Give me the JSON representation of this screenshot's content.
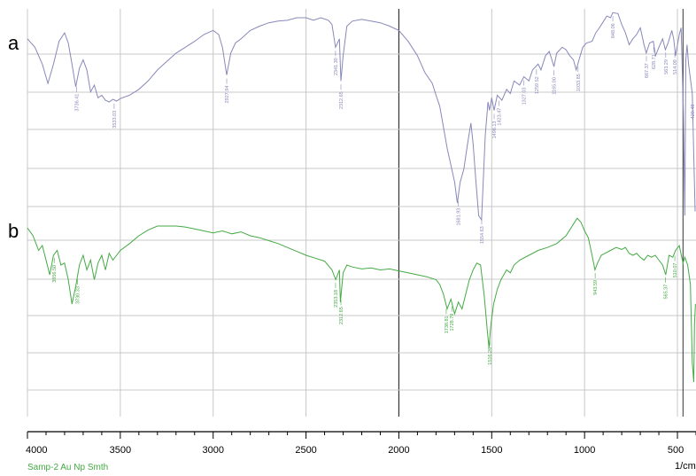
{
  "chart_data": {
    "type": "line",
    "xlim": [
      4000,
      400
    ],
    "x_ticks": [
      4000,
      3500,
      3000,
      2500,
      2000,
      1500,
      1000,
      500
    ],
    "x_unit_label": "1/cm",
    "caption": "Samp-2 Au Np Smth",
    "grid": true,
    "colors": {
      "a": "#8888bb",
      "b": "#44aa44",
      "grid": "#c8c8c8",
      "centerline": "#333333"
    },
    "series": [
      {
        "panel": "a",
        "points": [
          [
            4000,
            0.25
          ],
          [
            3960,
            0.35
          ],
          [
            3920,
            0.55
          ],
          [
            3890,
            0.78
          ],
          [
            3860,
            0.55
          ],
          [
            3830,
            0.28
          ],
          [
            3800,
            0.18
          ],
          [
            3780,
            0.3
          ],
          [
            3760,
            0.55
          ],
          [
            3740,
            0.82
          ],
          [
            3720,
            0.6
          ],
          [
            3700,
            0.5
          ],
          [
            3680,
            0.62
          ],
          [
            3660,
            0.88
          ],
          [
            3640,
            0.8
          ],
          [
            3620,
            0.95
          ],
          [
            3600,
            0.92
          ],
          [
            3580,
            0.98
          ],
          [
            3560,
            1.0
          ],
          [
            3540,
            0.97
          ],
          [
            3520,
            0.99
          ],
          [
            3500,
            0.96
          ],
          [
            3450,
            0.92
          ],
          [
            3400,
            0.85
          ],
          [
            3350,
            0.75
          ],
          [
            3300,
            0.62
          ],
          [
            3250,
            0.52
          ],
          [
            3200,
            0.42
          ],
          [
            3150,
            0.35
          ],
          [
            3100,
            0.28
          ],
          [
            3050,
            0.2
          ],
          [
            3000,
            0.15
          ],
          [
            2970,
            0.2
          ],
          [
            2950,
            0.35
          ],
          [
            2927,
            0.68
          ],
          [
            2905,
            0.42
          ],
          [
            2880,
            0.3
          ],
          [
            2850,
            0.25
          ],
          [
            2800,
            0.15
          ],
          [
            2750,
            0.1
          ],
          [
            2700,
            0.06
          ],
          [
            2650,
            0.04
          ],
          [
            2600,
            0.03
          ],
          [
            2550,
            0.0
          ],
          [
            2500,
            0.0
          ],
          [
            2460,
            0.03
          ],
          [
            2420,
            0.0
          ],
          [
            2380,
            0.03
          ],
          [
            2360,
            0.08
          ],
          [
            2341,
            0.35
          ],
          [
            2320,
            0.25
          ],
          [
            2312,
            0.75
          ],
          [
            2300,
            0.45
          ],
          [
            2280,
            0.1
          ],
          [
            2250,
            0.04
          ],
          [
            2200,
            0.02
          ],
          [
            2150,
            0.04
          ],
          [
            2100,
            0.06
          ],
          [
            2050,
            0.1
          ],
          [
            2000,
            0.15
          ],
          [
            1950,
            0.28
          ],
          [
            1900,
            0.45
          ],
          [
            1860,
            0.65
          ],
          [
            1820,
            0.78
          ],
          [
            1800,
            0.92
          ],
          [
            1780,
            1.05
          ],
          [
            1760,
            1.3
          ],
          [
            1740,
            1.55
          ],
          [
            1720,
            1.75
          ],
          [
            1700,
            1.95
          ],
          [
            1685,
            2.2
          ],
          [
            1670,
            1.95
          ],
          [
            1650,
            1.8
          ],
          [
            1630,
            1.5
          ],
          [
            1612,
            1.25
          ],
          [
            1600,
            1.5
          ],
          [
            1585,
            1.95
          ],
          [
            1570,
            2.35
          ],
          [
            1555,
            2.4
          ],
          [
            1545,
            1.9
          ],
          [
            1535,
            1.4
          ],
          [
            1520,
            1.0
          ],
          [
            1512,
            1.1
          ],
          [
            1500,
            0.95
          ],
          [
            1487,
            1.1
          ],
          [
            1470,
            0.92
          ],
          [
            1445,
            0.98
          ],
          [
            1420,
            0.85
          ],
          [
            1400,
            0.9
          ],
          [
            1380,
            0.75
          ],
          [
            1350,
            0.8
          ],
          [
            1327,
            0.7
          ],
          [
            1300,
            0.75
          ],
          [
            1280,
            0.62
          ],
          [
            1250,
            0.55
          ],
          [
            1235,
            0.62
          ],
          [
            1210,
            0.45
          ],
          [
            1190,
            0.4
          ],
          [
            1165,
            0.58
          ],
          [
            1150,
            0.42
          ],
          [
            1120,
            0.35
          ],
          [
            1100,
            0.38
          ],
          [
            1080,
            0.45
          ],
          [
            1060,
            0.5
          ],
          [
            1045,
            0.62
          ],
          [
            1030,
            0.5
          ],
          [
            1010,
            0.35
          ],
          [
            990,
            0.3
          ],
          [
            960,
            0.28
          ],
          [
            940,
            0.18
          ],
          [
            920,
            0.12
          ],
          [
            900,
            0.05
          ],
          [
            880,
            -0.02
          ],
          [
            860,
            0.0
          ],
          [
            848,
            -0.06
          ],
          [
            820,
            -0.05
          ],
          [
            800,
            0.08
          ],
          [
            780,
            0.18
          ],
          [
            760,
            0.32
          ],
          [
            740,
            0.25
          ],
          [
            720,
            0.2
          ],
          [
            700,
            0.12
          ],
          [
            680,
            0.32
          ],
          [
            668,
            0.42
          ],
          [
            650,
            0.3
          ],
          [
            630,
            0.28
          ],
          [
            618,
            0.45
          ],
          [
            600,
            0.35
          ],
          [
            580,
            0.25
          ],
          [
            565,
            0.38
          ],
          [
            550,
            0.3
          ],
          [
            530,
            0.15
          ],
          [
            520,
            0.25
          ],
          [
            510,
            0.45
          ],
          [
            490,
            0.2
          ],
          [
            480,
            0.12
          ],
          [
            468,
            1.1
          ],
          [
            460,
            2.35
          ],
          [
            455,
            0.5
          ],
          [
            448,
            0.32
          ],
          [
            440,
            0.55
          ],
          [
            420,
            0.9
          ],
          [
            405,
            2.3
          ]
        ],
        "peak_labels": [
          {
            "x": 3736,
            "text": "3736.41"
          },
          {
            "x": 3533,
            "text": "3533.03"
          },
          {
            "x": 2927,
            "text": "2927.94"
          },
          {
            "x": 2341,
            "text": "2341.30"
          },
          {
            "x": 2312,
            "text": "2312.65"
          },
          {
            "x": 1681,
            "text": "1681.93"
          },
          {
            "x": 1554,
            "text": "1554.63"
          },
          {
            "x": 1487,
            "text": "1498.13"
          },
          {
            "x": 1460,
            "text": "1423.47"
          },
          {
            "x": 1327,
            "text": "1327.03"
          },
          {
            "x": 1259,
            "text": "1259.52"
          },
          {
            "x": 1165,
            "text": "1165.00"
          },
          {
            "x": 1035,
            "text": "1033.85"
          },
          {
            "x": 848,
            "text": "848.06"
          },
          {
            "x": 667,
            "text": "667.37"
          },
          {
            "x": 628,
            "text": "628.71"
          },
          {
            "x": 563,
            "text": "563.29"
          },
          {
            "x": 514,
            "text": "514.09"
          },
          {
            "x": 420,
            "text": "420.48"
          }
        ]
      },
      {
        "panel": "b",
        "points": [
          [
            4000,
            0.02
          ],
          [
            3970,
            0.1
          ],
          [
            3940,
            0.25
          ],
          [
            3920,
            0.2
          ],
          [
            3900,
            0.35
          ],
          [
            3880,
            0.5
          ],
          [
            3860,
            0.3
          ],
          [
            3840,
            0.25
          ],
          [
            3820,
            0.4
          ],
          [
            3800,
            0.38
          ],
          [
            3780,
            0.55
          ],
          [
            3760,
            0.8
          ],
          [
            3740,
            0.62
          ],
          [
            3720,
            0.4
          ],
          [
            3700,
            0.3
          ],
          [
            3680,
            0.45
          ],
          [
            3660,
            0.35
          ],
          [
            3640,
            0.55
          ],
          [
            3620,
            0.38
          ],
          [
            3600,
            0.3
          ],
          [
            3580,
            0.45
          ],
          [
            3560,
            0.28
          ],
          [
            3540,
            0.35
          ],
          [
            3500,
            0.25
          ],
          [
            3450,
            0.18
          ],
          [
            3400,
            0.1
          ],
          [
            3350,
            0.04
          ],
          [
            3300,
            0.0
          ],
          [
            3250,
            0.0
          ],
          [
            3200,
            0.0
          ],
          [
            3150,
            0.01
          ],
          [
            3100,
            0.03
          ],
          [
            3050,
            0.05
          ],
          [
            3000,
            0.07
          ],
          [
            2950,
            0.05
          ],
          [
            2900,
            0.08
          ],
          [
            2850,
            0.06
          ],
          [
            2800,
            0.1
          ],
          [
            2750,
            0.12
          ],
          [
            2700,
            0.15
          ],
          [
            2650,
            0.18
          ],
          [
            2600,
            0.22
          ],
          [
            2550,
            0.26
          ],
          [
            2500,
            0.3
          ],
          [
            2450,
            0.33
          ],
          [
            2400,
            0.36
          ],
          [
            2360,
            0.45
          ],
          [
            2340,
            0.55
          ],
          [
            2320,
            0.45
          ],
          [
            2315,
            0.78
          ],
          [
            2300,
            0.48
          ],
          [
            2280,
            0.4
          ],
          [
            2250,
            0.42
          ],
          [
            2200,
            0.44
          ],
          [
            2150,
            0.43
          ],
          [
            2100,
            0.45
          ],
          [
            2050,
            0.44
          ],
          [
            2000,
            0.46
          ],
          [
            1950,
            0.48
          ],
          [
            1900,
            0.5
          ],
          [
            1850,
            0.52
          ],
          [
            1800,
            0.55
          ],
          [
            1780,
            0.6
          ],
          [
            1760,
            0.7
          ],
          [
            1740,
            0.85
          ],
          [
            1720,
            0.75
          ],
          [
            1700,
            0.9
          ],
          [
            1680,
            0.78
          ],
          [
            1660,
            0.85
          ],
          [
            1640,
            0.7
          ],
          [
            1620,
            0.55
          ],
          [
            1600,
            0.45
          ],
          [
            1580,
            0.38
          ],
          [
            1560,
            0.4
          ],
          [
            1540,
            0.72
          ],
          [
            1525,
            1.05
          ],
          [
            1515,
            1.25
          ],
          [
            1505,
            1.02
          ],
          [
            1490,
            0.8
          ],
          [
            1470,
            0.65
          ],
          [
            1450,
            0.55
          ],
          [
            1420,
            0.45
          ],
          [
            1400,
            0.48
          ],
          [
            1380,
            0.4
          ],
          [
            1350,
            0.35
          ],
          [
            1300,
            0.3
          ],
          [
            1250,
            0.25
          ],
          [
            1200,
            0.22
          ],
          [
            1150,
            0.18
          ],
          [
            1100,
            0.1
          ],
          [
            1060,
            -0.02
          ],
          [
            1040,
            -0.08
          ],
          [
            1020,
            -0.04
          ],
          [
            1000,
            0.05
          ],
          [
            980,
            0.12
          ],
          [
            960,
            0.3
          ],
          [
            944,
            0.45
          ],
          [
            930,
            0.38
          ],
          [
            910,
            0.3
          ],
          [
            890,
            0.28
          ],
          [
            860,
            0.25
          ],
          [
            830,
            0.22
          ],
          [
            800,
            0.24
          ],
          [
            780,
            0.22
          ],
          [
            760,
            0.28
          ],
          [
            740,
            0.3
          ],
          [
            720,
            0.28
          ],
          [
            700,
            0.32
          ],
          [
            680,
            0.35
          ],
          [
            660,
            0.3
          ],
          [
            640,
            0.32
          ],
          [
            620,
            0.3
          ],
          [
            600,
            0.35
          ],
          [
            580,
            0.4
          ],
          [
            563,
            0.5
          ],
          [
            545,
            0.3
          ],
          [
            525,
            0.32
          ],
          [
            510,
            0.25
          ],
          [
            490,
            0.2
          ],
          [
            470,
            0.38
          ],
          [
            460,
            0.32
          ],
          [
            445,
            0.4
          ],
          [
            430,
            0.6
          ],
          [
            420,
            1.4
          ],
          [
            412,
            1.6
          ],
          [
            408,
            1.0
          ],
          [
            403,
            0.8
          ]
        ],
        "peak_labels": [
          {
            "x": 3856,
            "text": "3856.50"
          },
          {
            "x": 3730,
            "text": "3730.33"
          },
          {
            "x": 2341,
            "text": "2353.18"
          },
          {
            "x": 2312,
            "text": "2312.65"
          },
          {
            "x": 1745,
            "text": "1738.81"
          },
          {
            "x": 1715,
            "text": "1728.79"
          },
          {
            "x": 1510,
            "text": "1516.26"
          },
          {
            "x": 943,
            "text": "943.59"
          },
          {
            "x": 565,
            "text": "565.37"
          },
          {
            "x": 514,
            "text": "510.07"
          }
        ]
      }
    ]
  }
}
